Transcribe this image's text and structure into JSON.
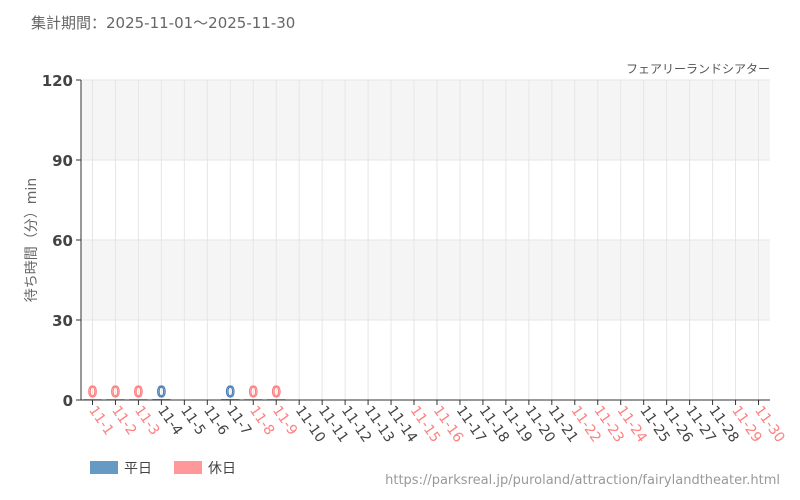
{
  "header": {
    "period": "集計期間：2025-11-01～2025-11-30",
    "attraction": "フェアリーランドシアター"
  },
  "footer": {
    "url": "https://parksreal.jp/puroland/attraction/fairylandtheater.html"
  },
  "legend": [
    {
      "label": "平日",
      "color": "#6699c4"
    },
    {
      "label": "休日",
      "color": "#ff9999"
    }
  ],
  "chart_data": {
    "type": "bar",
    "ylabel": "待ち時間（分）min",
    "ylim": [
      0,
      120
    ],
    "yticks": [
      0,
      30,
      60,
      90,
      120
    ],
    "grid": true,
    "legend_position": "bottom-left",
    "categories": [
      "11-1",
      "11-2",
      "11-3",
      "11-4",
      "11-5",
      "11-6",
      "11-7",
      "11-8",
      "11-9",
      "11-10",
      "11-11",
      "11-12",
      "11-13",
      "11-14",
      "11-15",
      "11-16",
      "11-17",
      "11-18",
      "11-19",
      "11-20",
      "11-21",
      "11-22",
      "11-23",
      "11-24",
      "11-25",
      "11-26",
      "11-27",
      "11-28",
      "11-29",
      "11-30"
    ],
    "holiday": [
      true,
      true,
      true,
      false,
      false,
      false,
      false,
      true,
      true,
      false,
      false,
      false,
      false,
      false,
      true,
      true,
      false,
      false,
      false,
      false,
      false,
      true,
      true,
      true,
      false,
      false,
      false,
      false,
      true,
      true
    ],
    "values": [
      0,
      0,
      0,
      0,
      null,
      null,
      0,
      0,
      0,
      null,
      null,
      null,
      null,
      null,
      null,
      null,
      null,
      null,
      null,
      null,
      null,
      null,
      null,
      null,
      null,
      null,
      null,
      null,
      null,
      null
    ],
    "colors": {
      "weekday": "#6699c4",
      "holiday": "#ff9999",
      "weekday_label": "#4a7fb5",
      "holiday_label": "#ff8080",
      "tick": "#444"
    }
  }
}
